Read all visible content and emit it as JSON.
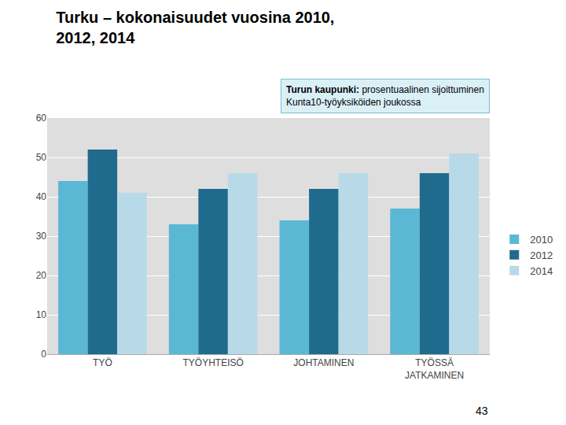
{
  "chart_data": {
    "type": "bar",
    "title": "Turku – kokonaisuudet vuosina 2010,\n2012, 2014",
    "categories": [
      "TYÖ",
      "TYÖYHTEISÖ",
      "JOHTAMINEN",
      "TYÖSSÄ\nJATKAMINEN"
    ],
    "series": [
      {
        "name": "2010",
        "color": "#5BB8D4",
        "values": [
          44,
          33,
          34,
          37
        ]
      },
      {
        "name": "2012",
        "color": "#1F6B8E",
        "values": [
          52,
          42,
          42,
          46
        ]
      },
      {
        "name": "2014",
        "color": "#B8D9E8",
        "values": [
          41,
          46,
          46,
          51
        ]
      }
    ],
    "ylim": [
      0,
      60
    ],
    "yticks": [
      0,
      10,
      20,
      30,
      40,
      50,
      60
    ],
    "grid": true,
    "legend": "right",
    "annotations": [
      "Turun kaupunki: prosentuaalinen sijoittuminen",
      "Kunta10-työyksiköiden joukossa",
      "43"
    ]
  }
}
